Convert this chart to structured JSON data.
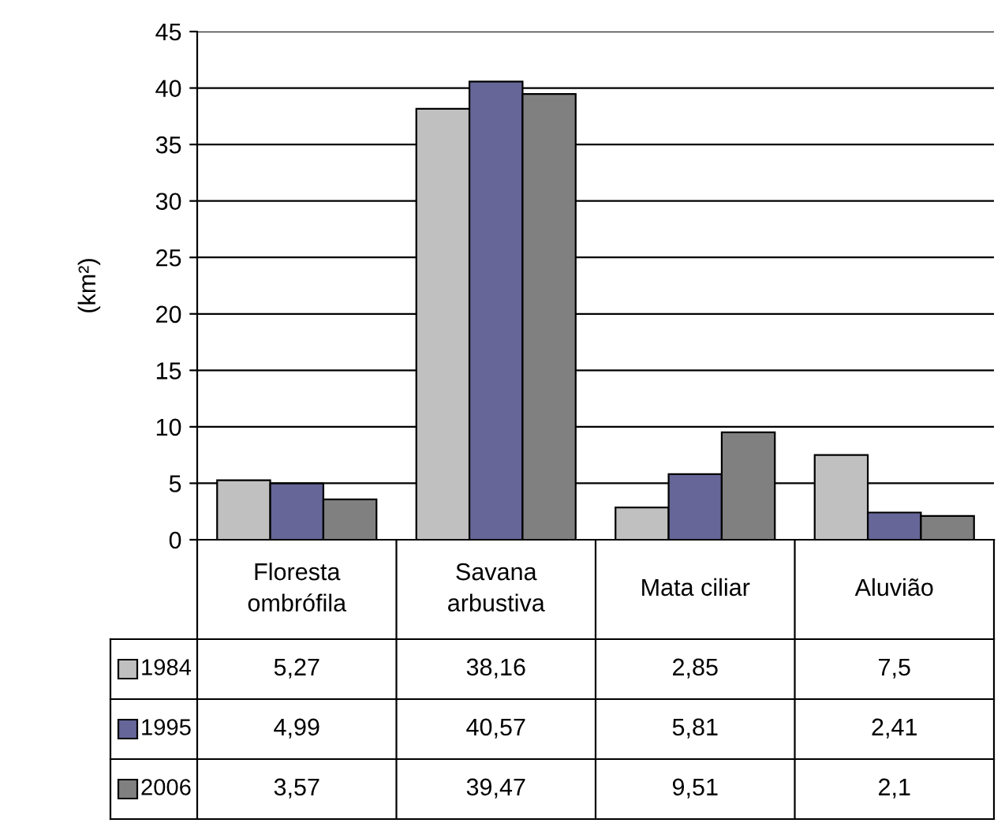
{
  "chart_data": {
    "type": "bar",
    "ylabel": "(km²)",
    "categories": [
      "Floresta\nombrófila",
      "Savana\narbustiva",
      "Mata ciliar",
      "Aluvião"
    ],
    "series": [
      {
        "name": "1984",
        "color": "#c0c0c0",
        "values": [
          5.27,
          38.16,
          2.85,
          7.5
        ],
        "value_labels": [
          "5,27",
          "38,16",
          "2,85",
          "7,5"
        ]
      },
      {
        "name": "1995",
        "color": "#666699",
        "values": [
          4.99,
          40.57,
          5.81,
          2.41
        ],
        "value_labels": [
          "4,99",
          "40,57",
          "5,81",
          "2,41"
        ]
      },
      {
        "name": "2006",
        "color": "#808080",
        "values": [
          3.57,
          39.47,
          9.51,
          2.1
        ],
        "value_labels": [
          "3,57",
          "39,47",
          "9,51",
          "2,1"
        ]
      }
    ],
    "ylim": [
      0,
      45
    ],
    "yticks": [
      0,
      5,
      10,
      15,
      20,
      25,
      30,
      35,
      40,
      45
    ],
    "grid": "y",
    "legend": "bottom left"
  }
}
